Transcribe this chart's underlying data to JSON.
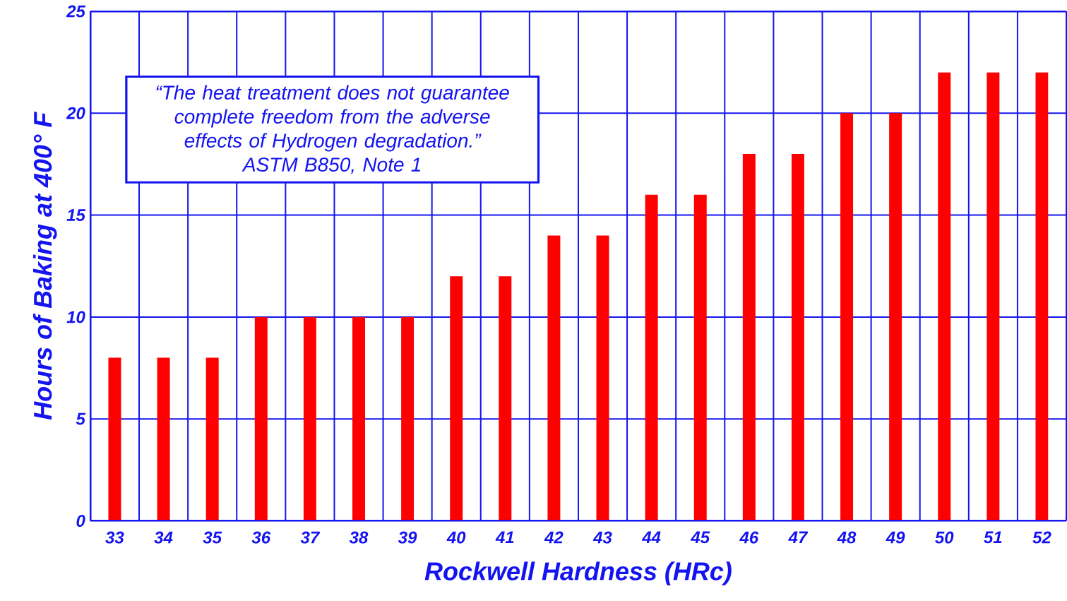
{
  "chart_data": {
    "type": "bar",
    "categories": [
      "33",
      "34",
      "35",
      "36",
      "37",
      "38",
      "39",
      "40",
      "41",
      "42",
      "43",
      "44",
      "45",
      "46",
      "47",
      "48",
      "49",
      "50",
      "51",
      "52"
    ],
    "values": [
      8,
      8,
      8,
      10,
      10,
      10,
      10,
      12,
      12,
      14,
      14,
      16,
      16,
      18,
      18,
      20,
      20,
      22,
      22,
      22
    ],
    "color": "#ff0000",
    "xlabel": "Rockwell Hardness (HRc)",
    "ylabel": "Hours of Baking at 400° F",
    "ylim": [
      0,
      25
    ],
    "yticks": [
      0,
      5,
      10,
      15,
      20,
      25
    ],
    "grid": true,
    "annotations": [
      "“The heat treatment does not guarantee complete freedom from the adverse effects of Hydrogen degradation.”",
      "ASTM B850, Note 1"
    ]
  }
}
